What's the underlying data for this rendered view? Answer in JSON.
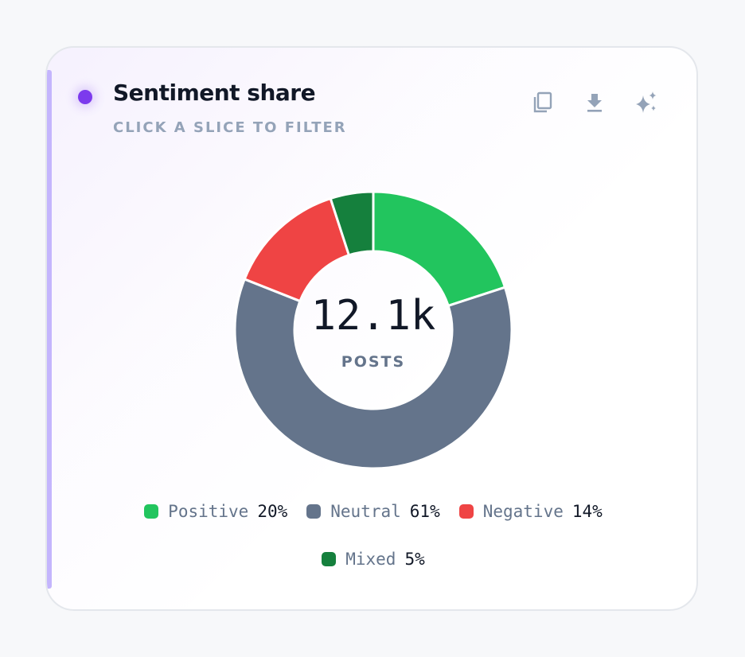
{
  "card": {
    "title": "Sentiment share",
    "subtitle": "CLICK A SLICE TO FILTER",
    "accent_color": "#7c3aed"
  },
  "toolbar": {
    "copy_icon": "copy-icon",
    "download_icon": "download-icon",
    "ai_icon": "sparkle-icon"
  },
  "center": {
    "value": "12.1k",
    "label": "POSTS"
  },
  "chart_data": {
    "type": "pie",
    "donut": true,
    "categories": [
      "Positive",
      "Neutral",
      "Negative",
      "Mixed"
    ],
    "values": [
      20,
      61,
      14,
      5
    ],
    "value_labels": [
      "20%",
      "61%",
      "14%",
      "5%"
    ],
    "colors": [
      "#22c55e",
      "#64748b",
      "#ef4444",
      "#15803d"
    ],
    "legend_position": "bottom"
  }
}
